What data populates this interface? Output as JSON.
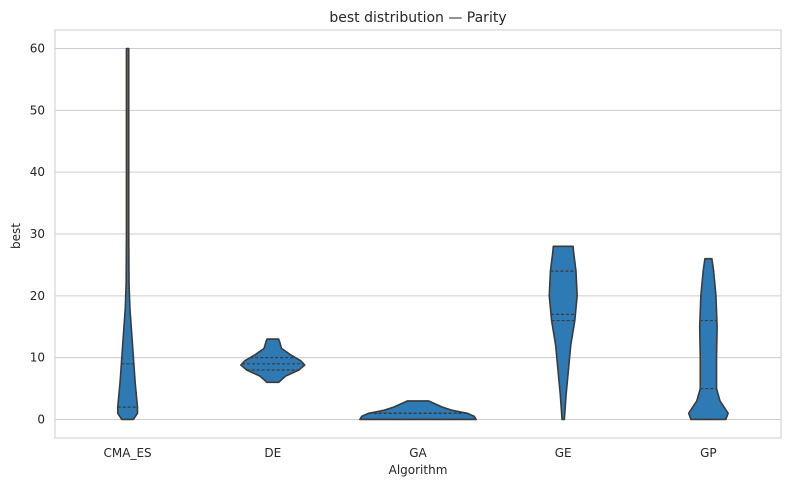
{
  "chart_data": {
    "type": "violin",
    "title": "best distribution — Parity",
    "xlabel": "Algorithm",
    "ylabel": "best",
    "ylim": [
      -3,
      63
    ],
    "yticks": [
      0,
      10,
      20,
      30,
      40,
      50,
      60
    ],
    "grid": "horizontal",
    "colors": {
      "fill": "#2e7ab4",
      "edge": "#3b3b3b",
      "grid": "#cccccc",
      "axis": "#cccccc"
    },
    "categories": [
      "CMA_ES",
      "DE",
      "GA",
      "GE",
      "GP"
    ],
    "violins": [
      {
        "category": "CMA_ES",
        "profile": [
          [
            0,
            0.1
          ],
          [
            1,
            0.17
          ],
          [
            2,
            0.17
          ],
          [
            4,
            0.15
          ],
          [
            6,
            0.13
          ],
          [
            10,
            0.1
          ],
          [
            14,
            0.07
          ],
          [
            18,
            0.04
          ],
          [
            22,
            0.025
          ],
          [
            30,
            0.02
          ],
          [
            40,
            0.02
          ],
          [
            50,
            0.02
          ],
          [
            60,
            0.02
          ]
        ],
        "quartiles": [
          0,
          2,
          9
        ]
      },
      {
        "category": "DE",
        "profile": [
          [
            6,
            0.1
          ],
          [
            7,
            0.22
          ],
          [
            8,
            0.45
          ],
          [
            8.8,
            0.55
          ],
          [
            9.5,
            0.48
          ],
          [
            10.5,
            0.3
          ],
          [
            11.5,
            0.15
          ],
          [
            12.5,
            0.12
          ],
          [
            13,
            0.1
          ]
        ],
        "quartiles": [
          8,
          9,
          10
        ]
      },
      {
        "category": "GA",
        "profile": [
          [
            0,
            1.0
          ],
          [
            0.5,
            0.97
          ],
          [
            1,
            0.85
          ],
          [
            1.5,
            0.58
          ],
          [
            2,
            0.42
          ],
          [
            2.5,
            0.3
          ],
          [
            3,
            0.18
          ]
        ],
        "quartiles": [
          0,
          1,
          1
        ]
      },
      {
        "category": "GE",
        "profile": [
          [
            0,
            0.02
          ],
          [
            4,
            0.05
          ],
          [
            8,
            0.09
          ],
          [
            12,
            0.13
          ],
          [
            16,
            0.2
          ],
          [
            20,
            0.24
          ],
          [
            24,
            0.22
          ],
          [
            27,
            0.18
          ],
          [
            28,
            0.17
          ]
        ],
        "quartiles": [
          16,
          17,
          24
        ]
      },
      {
        "category": "GP",
        "profile": [
          [
            0,
            0.3
          ],
          [
            1,
            0.34
          ],
          [
            3,
            0.2
          ],
          [
            5,
            0.14
          ],
          [
            10,
            0.14
          ],
          [
            15,
            0.15
          ],
          [
            20,
            0.13
          ],
          [
            24,
            0.09
          ],
          [
            26,
            0.06
          ]
        ],
        "quartiles": [
          0,
          5,
          16
        ]
      }
    ]
  }
}
